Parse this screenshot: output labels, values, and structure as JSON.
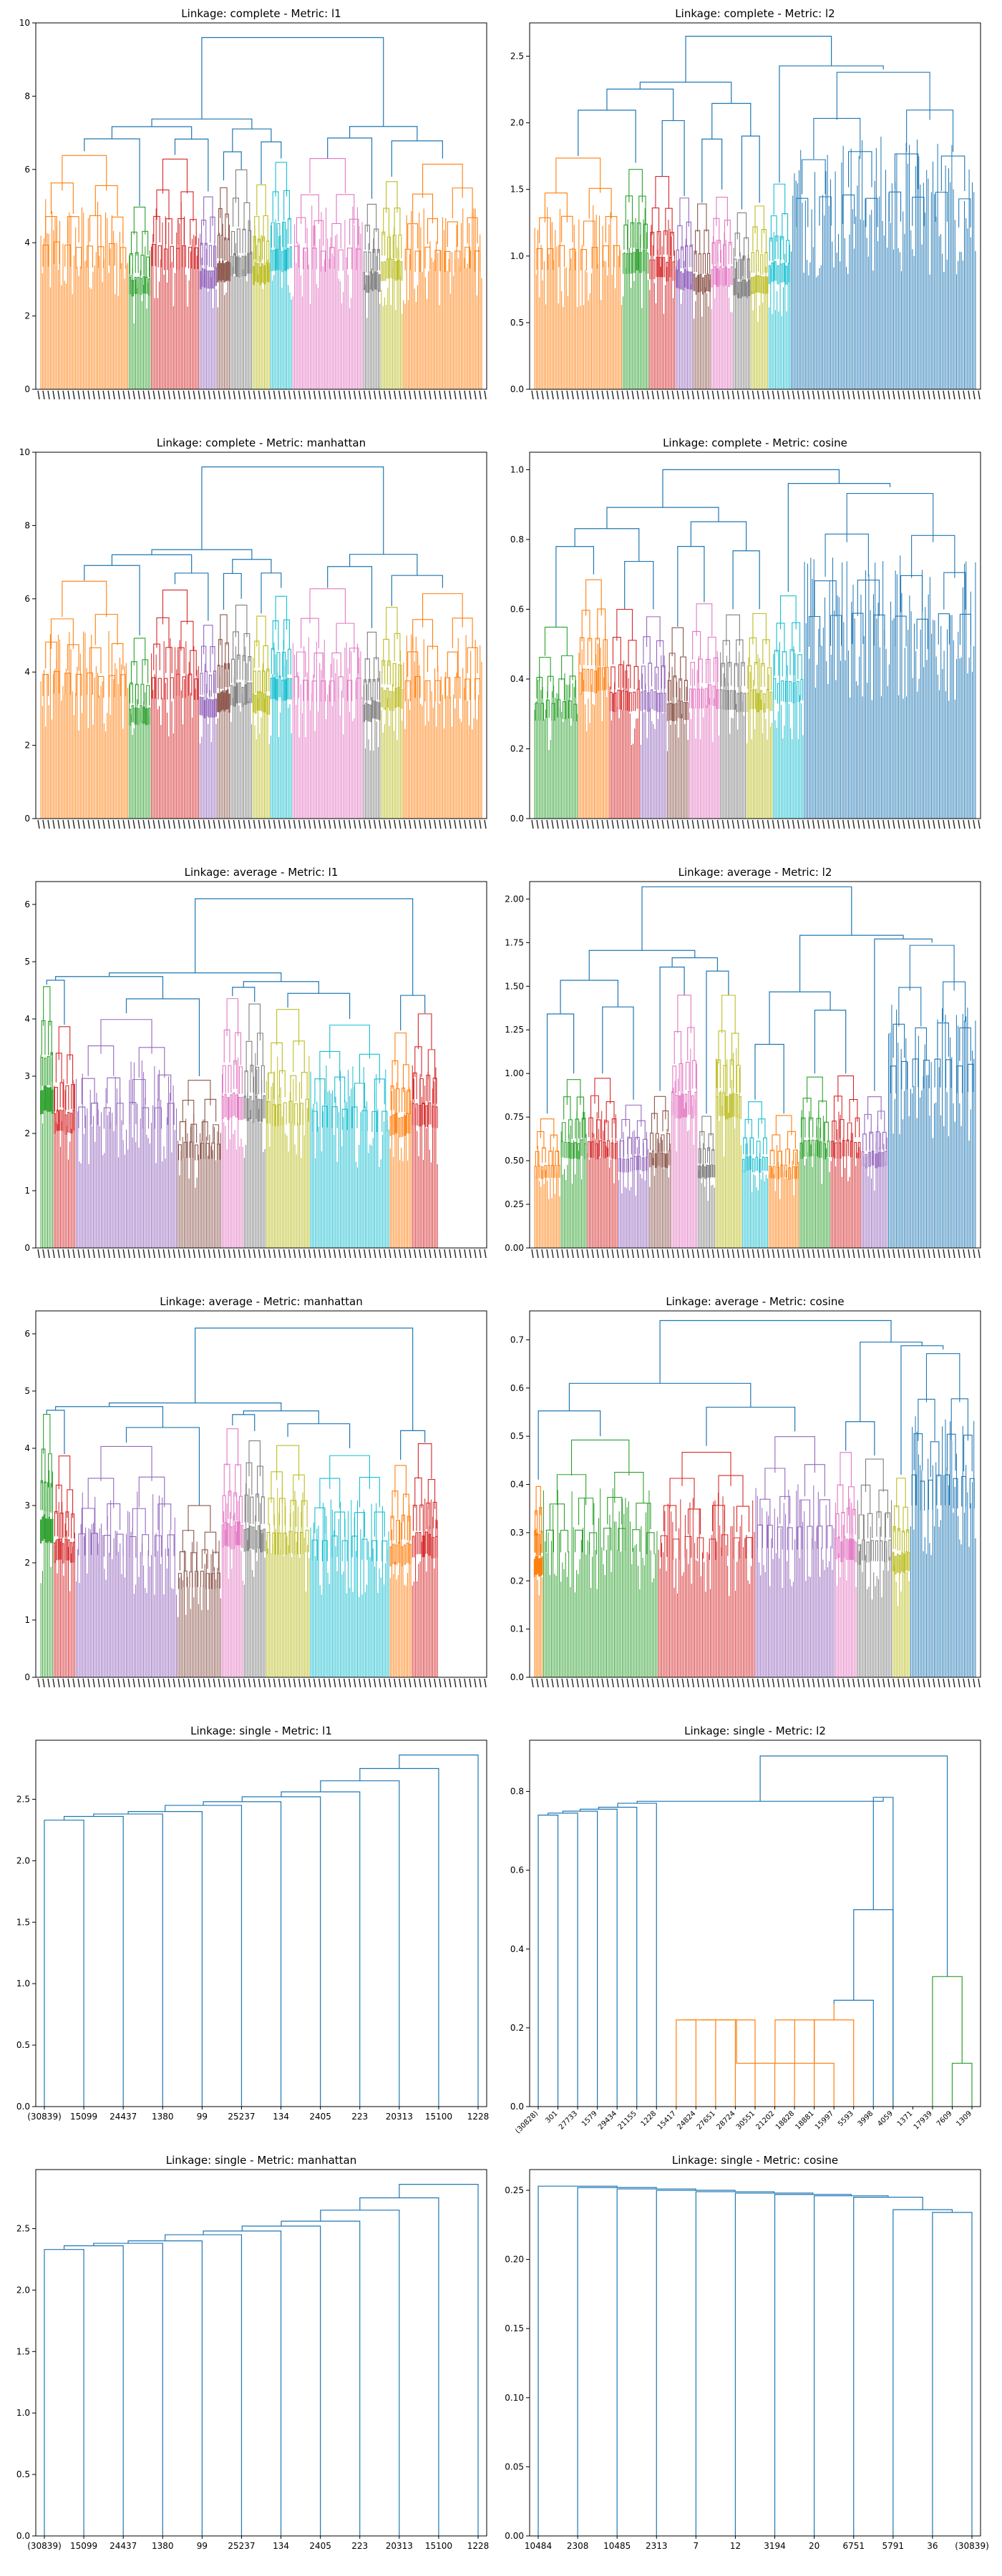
{
  "figure": {
    "layout": "6 rows x 2 columns of dendrogram panels"
  },
  "chart_data": [
    {
      "type": "dendrogram",
      "title": "Linkage: complete - Metric: l1",
      "ylim": [
        0,
        10
      ],
      "yticks": [
        "0",
        "2",
        "4",
        "6",
        "8",
        "10"
      ],
      "grid": false,
      "root_height": 9.6,
      "top_merges": [
        {
          "height": 9.6,
          "color": "#1f77b4"
        },
        {
          "height": 7.6,
          "color": "#1f77b4"
        },
        {
          "height": 8.1,
          "color": "#1f77b4"
        }
      ],
      "clusters": [
        {
          "color": "#ff7f0e",
          "share": 0.2,
          "height": 6.5
        },
        {
          "color": "#2ca02c",
          "share": 0.05,
          "height": 5.0
        },
        {
          "color": "#d62728",
          "share": 0.11,
          "height": 6.4
        },
        {
          "color": "#9467bd",
          "share": 0.04,
          "height": 5.4
        },
        {
          "color": "#8c564b",
          "share": 0.03,
          "height": 5.7
        },
        {
          "color": "#7f7f7f",
          "share": 0.05,
          "height": 6.0
        },
        {
          "color": "#bcbd22",
          "share": 0.04,
          "height": 5.6
        },
        {
          "color": "#17becf",
          "share": 0.05,
          "height": 6.3
        },
        {
          "color": "#e377c2",
          "share": 0.16,
          "height": 6.3
        },
        {
          "color": "#7f7f7f",
          "share": 0.04,
          "height": 5.2
        },
        {
          "color": "#bcbd22",
          "share": 0.05,
          "height": 5.8
        },
        {
          "color": "#ff7f0e",
          "share": 0.18,
          "height": 6.3
        }
      ],
      "leaf_labels": "dense, illegible"
    },
    {
      "type": "dendrogram",
      "title": "Linkage: complete - Metric: l2",
      "ylim": [
        0,
        2.75
      ],
      "yticks": [
        "0.0",
        "0.5",
        "1.0",
        "1.5",
        "2.0",
        "2.5"
      ],
      "grid": false,
      "root_height": 2.65,
      "top_merges": [
        {
          "height": 2.65,
          "color": "#1f77b4"
        },
        {
          "height": 2.5,
          "color": "#1f77b4"
        },
        {
          "height": 2.45,
          "color": "#1f77b4"
        }
      ],
      "clusters": [
        {
          "color": "#ff7f0e",
          "share": 0.2,
          "height": 1.75
        },
        {
          "color": "#2ca02c",
          "share": 0.06,
          "height": 1.7
        },
        {
          "color": "#d62728",
          "share": 0.06,
          "height": 1.6
        },
        {
          "color": "#9467bd",
          "share": 0.04,
          "height": 1.45
        },
        {
          "color": "#8c564b",
          "share": 0.04,
          "height": 1.4
        },
        {
          "color": "#e377c2",
          "share": 0.05,
          "height": 1.5
        },
        {
          "color": "#7f7f7f",
          "share": 0.04,
          "height": 1.35
        },
        {
          "color": "#bcbd22",
          "share": 0.04,
          "height": 1.4
        },
        {
          "color": "#17becf",
          "share": 0.05,
          "height": 1.55
        },
        {
          "color": "#1f77b4",
          "share": 0.42,
          "height": 2.4
        }
      ],
      "leaf_labels": "dense, illegible"
    },
    {
      "type": "dendrogram",
      "title": "Linkage: complete - Metric: manhattan",
      "ylim": [
        0,
        10
      ],
      "yticks": [
        "0",
        "2",
        "4",
        "6",
        "8",
        "10"
      ],
      "grid": false,
      "root_height": 9.6,
      "top_merges": [
        {
          "height": 9.6,
          "color": "#1f77b4"
        },
        {
          "height": 7.6,
          "color": "#1f77b4"
        },
        {
          "height": 8.1,
          "color": "#1f77b4"
        }
      ],
      "clusters": [
        {
          "color": "#ff7f0e",
          "share": 0.2,
          "height": 6.5
        },
        {
          "color": "#2ca02c",
          "share": 0.05,
          "height": 5.0
        },
        {
          "color": "#d62728",
          "share": 0.11,
          "height": 6.4
        },
        {
          "color": "#9467bd",
          "share": 0.04,
          "height": 5.4
        },
        {
          "color": "#8c564b",
          "share": 0.03,
          "height": 5.7
        },
        {
          "color": "#7f7f7f",
          "share": 0.05,
          "height": 6.0
        },
        {
          "color": "#bcbd22",
          "share": 0.04,
          "height": 5.6
        },
        {
          "color": "#17becf",
          "share": 0.05,
          "height": 6.3
        },
        {
          "color": "#e377c2",
          "share": 0.16,
          "height": 6.3
        },
        {
          "color": "#7f7f7f",
          "share": 0.04,
          "height": 5.2
        },
        {
          "color": "#bcbd22",
          "share": 0.05,
          "height": 5.8
        },
        {
          "color": "#ff7f0e",
          "share": 0.18,
          "height": 6.3
        }
      ],
      "leaf_labels": "dense, illegible"
    },
    {
      "type": "dendrogram",
      "title": "Linkage: complete - Metric: cosine",
      "ylim": [
        0,
        1.05
      ],
      "yticks": [
        "0.0",
        "0.2",
        "0.4",
        "0.6",
        "0.8",
        "1.0"
      ],
      "grid": false,
      "root_height": 1.0,
      "top_merges": [
        {
          "height": 1.0,
          "color": "#1f77b4"
        },
        {
          "height": 0.97,
          "color": "#1f77b4"
        },
        {
          "height": 0.95,
          "color": "#1f77b4"
        }
      ],
      "clusters": [
        {
          "color": "#2ca02c",
          "share": 0.1,
          "height": 0.55
        },
        {
          "color": "#ff7f0e",
          "share": 0.07,
          "height": 0.7
        },
        {
          "color": "#d62728",
          "share": 0.07,
          "height": 0.6
        },
        {
          "color": "#9467bd",
          "share": 0.06,
          "height": 0.6
        },
        {
          "color": "#8c564b",
          "share": 0.05,
          "height": 0.55
        },
        {
          "color": "#e377c2",
          "share": 0.07,
          "height": 0.62
        },
        {
          "color": "#7f7f7f",
          "share": 0.06,
          "height": 0.6
        },
        {
          "color": "#bcbd22",
          "share": 0.06,
          "height": 0.6
        },
        {
          "color": "#17becf",
          "share": 0.07,
          "height": 0.65
        },
        {
          "color": "#1f77b4",
          "share": 0.39,
          "height": 0.95
        }
      ],
      "leaf_labels": "dense, illegible"
    },
    {
      "type": "dendrogram",
      "title": "Linkage: average - Metric: l1",
      "ylim": [
        0,
        6.4
      ],
      "yticks": [
        "0",
        "1",
        "2",
        "3",
        "4",
        "5",
        "6"
      ],
      "grid": false,
      "root_height": 6.1,
      "top_merges": [
        {
          "height": 6.1,
          "color": "#1f77b4"
        },
        {
          "height": 5.0,
          "color": "#1f77b4"
        },
        {
          "height": 4.8,
          "color": "#1f77b4"
        }
      ],
      "clusters": [
        {
          "color": "#2ca02c",
          "share": 0.03,
          "height": 4.6
        },
        {
          "color": "#d62728",
          "share": 0.05,
          "height": 3.9
        },
        {
          "color": "#9467bd",
          "share": 0.23,
          "height": 4.1
        },
        {
          "color": "#8c564b",
          "share": 0.1,
          "height": 3.0
        },
        {
          "color": "#e377c2",
          "share": 0.05,
          "height": 4.4
        },
        {
          "color": "#7f7f7f",
          "share": 0.05,
          "height": 4.3
        },
        {
          "color": "#bcbd22",
          "share": 0.1,
          "height": 4.2
        },
        {
          "color": "#17becf",
          "share": 0.18,
          "height": 4.0
        },
        {
          "color": "#ff7f0e",
          "share": 0.05,
          "height": 3.8
        },
        {
          "color": "#d62728",
          "share": 0.06,
          "height": 4.1
        }
      ],
      "leaf_labels": "dense, illegible"
    },
    {
      "type": "dendrogram",
      "title": "Linkage: average - Metric: l2",
      "ylim": [
        0,
        2.1
      ],
      "yticks": [
        "0.00",
        "0.25",
        "0.50",
        "0.75",
        "1.00",
        "1.25",
        "1.50",
        "1.75",
        "2.00"
      ],
      "grid": false,
      "root_height": 2.07,
      "top_merges": [
        {
          "height": 2.07,
          "color": "#1f77b4"
        },
        {
          "height": 1.82,
          "color": "#1f77b4"
        },
        {
          "height": 1.78,
          "color": "#1f77b4"
        }
      ],
      "clusters": [
        {
          "color": "#ff7f0e",
          "share": 0.06,
          "height": 0.77
        },
        {
          "color": "#2ca02c",
          "share": 0.06,
          "height": 1.0
        },
        {
          "color": "#d62728",
          "share": 0.07,
          "height": 1.0
        },
        {
          "color": "#9467bd",
          "share": 0.07,
          "height": 0.85
        },
        {
          "color": "#8c564b",
          "share": 0.05,
          "height": 0.9
        },
        {
          "color": "#e377c2",
          "share": 0.06,
          "height": 1.45
        },
        {
          "color": "#7f7f7f",
          "share": 0.04,
          "height": 0.77
        },
        {
          "color": "#bcbd22",
          "share": 0.06,
          "height": 1.45
        },
        {
          "color": "#17becf",
          "share": 0.06,
          "height": 0.85
        },
        {
          "color": "#ff7f0e",
          "share": 0.07,
          "height": 0.77
        },
        {
          "color": "#2ca02c",
          "share": 0.07,
          "height": 1.0
        },
        {
          "color": "#d62728",
          "share": 0.07,
          "height": 1.0
        },
        {
          "color": "#9467bd",
          "share": 0.06,
          "height": 0.9
        },
        {
          "color": "#1f77b4",
          "share": 0.2,
          "height": 1.75
        }
      ],
      "leaf_labels": "dense, illegible"
    },
    {
      "type": "dendrogram",
      "title": "Linkage: average - Metric: manhattan",
      "ylim": [
        0,
        6.4
      ],
      "yticks": [
        "0",
        "1",
        "2",
        "3",
        "4",
        "5",
        "6"
      ],
      "grid": false,
      "root_height": 6.1,
      "top_merges": [
        {
          "height": 6.1,
          "color": "#1f77b4"
        },
        {
          "height": 5.0,
          "color": "#1f77b4"
        },
        {
          "height": 4.8,
          "color": "#1f77b4"
        }
      ],
      "clusters": [
        {
          "color": "#2ca02c",
          "share": 0.03,
          "height": 4.6
        },
        {
          "color": "#d62728",
          "share": 0.05,
          "height": 3.9
        },
        {
          "color": "#9467bd",
          "share": 0.23,
          "height": 4.1
        },
        {
          "color": "#8c564b",
          "share": 0.1,
          "height": 3.0
        },
        {
          "color": "#e377c2",
          "share": 0.05,
          "height": 4.4
        },
        {
          "color": "#7f7f7f",
          "share": 0.05,
          "height": 4.3
        },
        {
          "color": "#bcbd22",
          "share": 0.1,
          "height": 4.2
        },
        {
          "color": "#17becf",
          "share": 0.18,
          "height": 4.0
        },
        {
          "color": "#ff7f0e",
          "share": 0.05,
          "height": 3.8
        },
        {
          "color": "#d62728",
          "share": 0.06,
          "height": 4.1
        }
      ],
      "leaf_labels": "dense, illegible"
    },
    {
      "type": "dendrogram",
      "title": "Linkage: average - Metric: cosine",
      "ylim": [
        0,
        0.76
      ],
      "yticks": [
        "0.0",
        "0.1",
        "0.2",
        "0.3",
        "0.4",
        "0.5",
        "0.6",
        "0.7"
      ],
      "grid": false,
      "root_height": 0.74,
      "top_merges": [
        {
          "height": 0.74,
          "color": "#1f77b4"
        },
        {
          "height": 0.71,
          "color": "#1f77b4"
        },
        {
          "height": 0.7,
          "color": "#1f77b4"
        }
      ],
      "clusters": [
        {
          "color": "#ff7f0e",
          "share": 0.02,
          "height": 0.41
        },
        {
          "color": "#2ca02c",
          "share": 0.26,
          "height": 0.5
        },
        {
          "color": "#d62728",
          "share": 0.22,
          "height": 0.48
        },
        {
          "color": "#9467bd",
          "share": 0.18,
          "height": 0.51
        },
        {
          "color": "#e377c2",
          "share": 0.05,
          "height": 0.47
        },
        {
          "color": "#7f7f7f",
          "share": 0.08,
          "height": 0.46
        },
        {
          "color": "#bcbd22",
          "share": 0.04,
          "height": 0.42
        },
        {
          "color": "#1f77b4",
          "share": 0.15,
          "height": 0.68
        }
      ],
      "leaf_labels": "dense, illegible"
    },
    {
      "type": "dendrogram",
      "title": "Linkage: single - Metric: l1",
      "ylim": [
        0,
        2.98
      ],
      "yticks": [
        "0.0",
        "0.5",
        "1.0",
        "1.5",
        "2.0",
        "2.5"
      ],
      "grid": false,
      "staircase": true,
      "leaves": [
        "(30839)",
        "15099",
        "24437",
        "1380",
        "99",
        "25237",
        "134",
        "2405",
        "223",
        "20313",
        "15100",
        "1228"
      ],
      "merge_heights": [
        2.33,
        2.36,
        2.38,
        2.4,
        2.45,
        2.48,
        2.52,
        2.56,
        2.65,
        2.75,
        2.86
      ],
      "color": "#1f77b4"
    },
    {
      "type": "dendrogram",
      "title": "Linkage: single - Metric: l2",
      "ylim": [
        0,
        0.93
      ],
      "yticks": [
        "0.0",
        "0.2",
        "0.4",
        "0.6",
        "0.8"
      ],
      "grid": false,
      "leaves": [
        "(30828)",
        "301",
        "27733",
        "1579",
        "29434",
        "21155",
        "1228",
        "15417",
        "24824",
        "27651",
        "28724",
        "30551",
        "21202",
        "18828",
        "18881",
        "15997",
        "5593",
        "3998",
        "4059",
        "1371",
        "17939",
        "7609",
        "1309"
      ],
      "color": "#1f77b4",
      "sub_clusters": [
        {
          "color": "#ff7f0e",
          "height": 0.26
        },
        {
          "color": "#2ca02c",
          "height": 0.33
        }
      ],
      "merge_heights": [
        0.74,
        0.745,
        0.75,
        0.755,
        0.76,
        0.77,
        0.78,
        0.79,
        0.89
      ]
    },
    {
      "type": "dendrogram",
      "title": "Linkage: single - Metric: manhattan",
      "ylim": [
        0,
        2.98
      ],
      "yticks": [
        "0.0",
        "0.5",
        "1.0",
        "1.5",
        "2.0",
        "2.5"
      ],
      "grid": false,
      "staircase": true,
      "leaves": [
        "(30839)",
        "15099",
        "24437",
        "1380",
        "99",
        "25237",
        "134",
        "2405",
        "223",
        "20313",
        "15100",
        "1228"
      ],
      "merge_heights": [
        2.33,
        2.36,
        2.38,
        2.4,
        2.45,
        2.48,
        2.52,
        2.56,
        2.65,
        2.75,
        2.86
      ],
      "color": "#1f77b4"
    },
    {
      "type": "dendrogram",
      "title": "Linkage: single - Metric: cosine",
      "ylim": [
        0,
        0.265
      ],
      "yticks": [
        "0.00",
        "0.05",
        "0.10",
        "0.15",
        "0.20",
        "0.25"
      ],
      "grid": false,
      "staircase": true,
      "reverse": true,
      "leaves": [
        "10484",
        "2308",
        "10485",
        "2313",
        "7",
        "12",
        "3194",
        "20",
        "6751",
        "5791",
        "36",
        "(30839)"
      ],
      "merge_heights": [
        0.253,
        0.252,
        0.251,
        0.25,
        0.249,
        0.248,
        0.247,
        0.246,
        0.245,
        0.236,
        0.234
      ],
      "color": "#1f77b4"
    }
  ]
}
